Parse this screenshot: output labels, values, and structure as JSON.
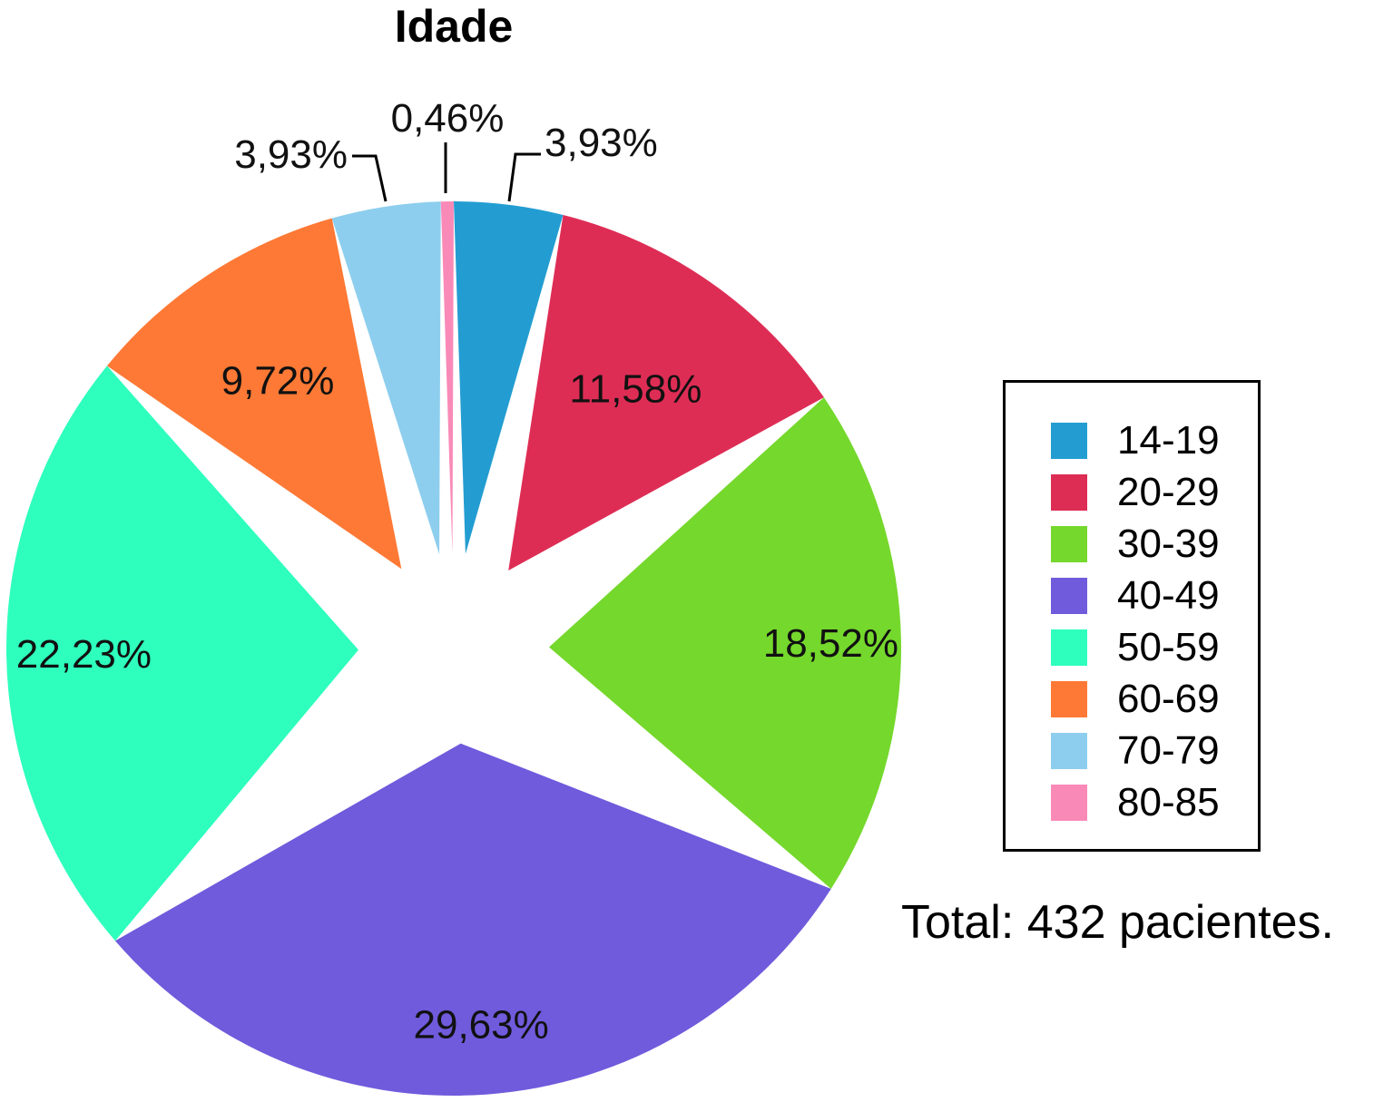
{
  "chart_data": {
    "type": "pie",
    "title": "Idade",
    "categories": [
      "14-19",
      "20-29",
      "30-39",
      "40-49",
      "50-59",
      "60-69",
      "70-79",
      "80-85"
    ],
    "values": [
      3.93,
      11.58,
      18.52,
      29.63,
      22.23,
      9.72,
      3.93,
      0.46
    ],
    "data_labels": [
      "3,93%",
      "11,58%",
      "18,52%",
      "29,63%",
      "22,23%",
      "9,72%",
      "3,93%",
      "0,46%"
    ],
    "colors": [
      "#239dd1",
      "#de2d55",
      "#75d82c",
      "#6f5bdc",
      "#2effbd",
      "#fe7935",
      "#8dceee",
      "#f98ab8"
    ],
    "legend_position": "right",
    "exploded": true,
    "start_angle": "top",
    "direction": "clockwise"
  },
  "annotations": {
    "total": "Total: 432 pacientes."
  }
}
